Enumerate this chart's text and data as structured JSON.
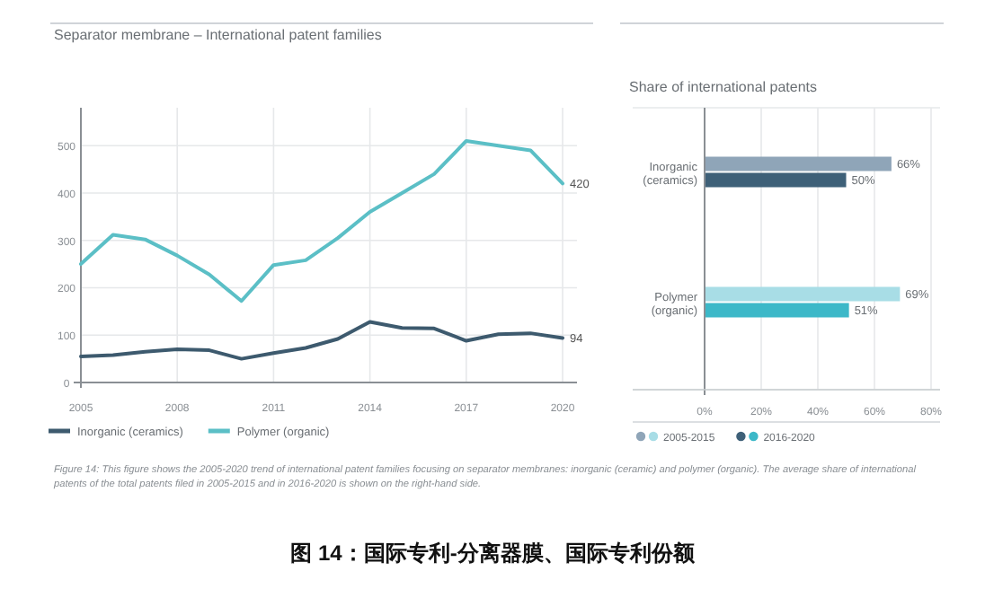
{
  "chart_data": [
    {
      "type": "line",
      "title": "Separator membrane – International patent families",
      "x": [
        2005,
        2006,
        2007,
        2008,
        2009,
        2010,
        2011,
        2012,
        2013,
        2014,
        2015,
        2016,
        2017,
        2018,
        2019,
        2020
      ],
      "series": [
        {
          "name": "Inorganic (ceramics)",
          "color": "#3d5a6e",
          "values": [
            55,
            58,
            65,
            70,
            68,
            50,
            62,
            73,
            92,
            128,
            115,
            114,
            88,
            102,
            104,
            94
          ],
          "value_labels": [
            null,
            null,
            null,
            null,
            null,
            null,
            null,
            null,
            null,
            null,
            null,
            null,
            null,
            null,
            null,
            "94"
          ]
        },
        {
          "name": "Polymer (organic)",
          "color": "#5bbfc6",
          "values": [
            250,
            312,
            302,
            268,
            228,
            172,
            248,
            258,
            305,
            360,
            400,
            440,
            510,
            500,
            490,
            420
          ],
          "value_labels": [
            null,
            null,
            null,
            null,
            null,
            null,
            null,
            null,
            null,
            null,
            null,
            null,
            null,
            null,
            null,
            "420"
          ]
        }
      ],
      "xlim": [
        2005,
        2020
      ],
      "xticks": [
        2005,
        2008,
        2011,
        2014,
        2017,
        2020
      ],
      "ylim": [
        0,
        580
      ],
      "yticks": [
        0,
        100,
        200,
        300,
        400,
        500
      ],
      "grid": true,
      "legend": "bottom",
      "annotations": [
        "Figure 14: This figure shows the 2005-2020 trend of international patent families focusing on separator membranes: inorganic (ceramic) and polymer (organic). The average share of international patents of the total patents filed in 2005-2015 and in 2016-2020 is shown on the right-hand side.",
        "图 14：国际专利-分离器膜、国际专利份额"
      ]
    },
    {
      "type": "bar",
      "orientation": "horizontal",
      "title": "Share of international patents",
      "categories": [
        "Inorganic\n(ceramics)",
        "Polymer\n(organic)"
      ],
      "series": [
        {
          "name": "2005-2015",
          "colors": [
            "#8fa5b8",
            "#a8dde6"
          ],
          "values": [
            66,
            69
          ],
          "value_labels": [
            "66%",
            "69%"
          ]
        },
        {
          "name": "2016-2020",
          "colors": [
            "#3e6078",
            "#3cb8c8"
          ],
          "values": [
            50,
            51
          ],
          "value_labels": [
            "50%",
            "51%"
          ]
        }
      ],
      "xlim": [
        0,
        80
      ],
      "xticks": [
        {
          "value": 0,
          "label": "0%"
        },
        {
          "value": 20,
          "label": "20%"
        },
        {
          "value": 40,
          "label": "40%"
        },
        {
          "value": 60,
          "label": "60%"
        },
        {
          "value": 80,
          "label": "80%"
        }
      ],
      "grid": "x",
      "legend": "bottom"
    }
  ]
}
